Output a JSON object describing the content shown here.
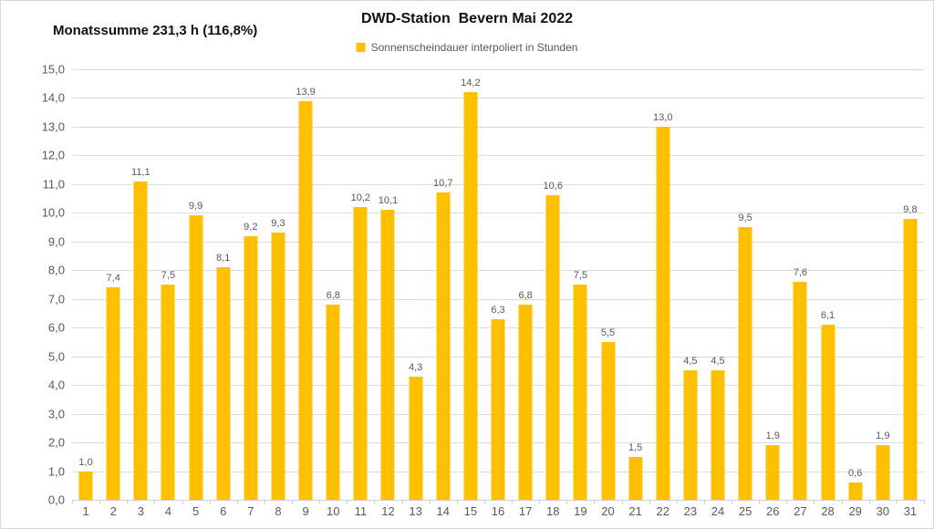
{
  "header": {
    "left_title": "Monatssumme 231,3 h (116,8%)"
  },
  "legend": {
    "label": "Sonnenscheindauer interpoliert in Stunden",
    "marker_color": "#FFC000"
  },
  "colors": {
    "bar": "#FFC000",
    "gridline": "#dcdcdc",
    "axis_text": "#595959",
    "title_text": "#111111"
  },
  "chart_data": {
    "type": "bar",
    "title": "DWD-Station  Bevern Mai 2022",
    "series_name": "Sonnenscheindauer interpoliert in Stunden",
    "xlabel": "",
    "ylabel": "",
    "categories": [
      "1",
      "2",
      "3",
      "4",
      "5",
      "6",
      "7",
      "8",
      "9",
      "10",
      "11",
      "12",
      "13",
      "14",
      "15",
      "16",
      "17",
      "18",
      "19",
      "20",
      "21",
      "22",
      "23",
      "24",
      "25",
      "26",
      "27",
      "28",
      "29",
      "30",
      "31"
    ],
    "values": [
      1.0,
      7.4,
      11.1,
      7.5,
      9.9,
      8.1,
      9.2,
      9.3,
      13.9,
      6.8,
      10.2,
      10.1,
      4.3,
      10.7,
      14.2,
      6.3,
      6.8,
      10.6,
      7.5,
      5.5,
      1.5,
      13.0,
      4.5,
      4.5,
      9.5,
      1.9,
      7.6,
      6.1,
      0.6,
      1.9,
      9.8
    ],
    "value_labels": [
      "1,0",
      "7,4",
      "11,1",
      "7,5",
      "9,9",
      "8,1",
      "9,2",
      "9,3",
      "13,9",
      "6,8",
      "10,2",
      "10,1",
      "4,3",
      "10,7",
      "14,2",
      "6,3",
      "6,8",
      "10,6",
      "7,5",
      "5,5",
      "1,5",
      "13,0",
      "4,5",
      "4,5",
      "9,5",
      "1,9",
      "7,6",
      "6,1",
      "0,6",
      "1,9",
      "9,8"
    ],
    "ylim": [
      0,
      15
    ],
    "ytick_step": 1.0,
    "ytick_labels": [
      "0,0",
      "1,0",
      "2,0",
      "3,0",
      "4,0",
      "5,0",
      "6,0",
      "7,0",
      "8,0",
      "9,0",
      "10,0",
      "11,0",
      "12,0",
      "13,0",
      "14,0",
      "15,0"
    ],
    "grid": true,
    "legend_position": "top",
    "monthly_sum_hours": "231,3",
    "monthly_sum_percent": "116,8"
  }
}
